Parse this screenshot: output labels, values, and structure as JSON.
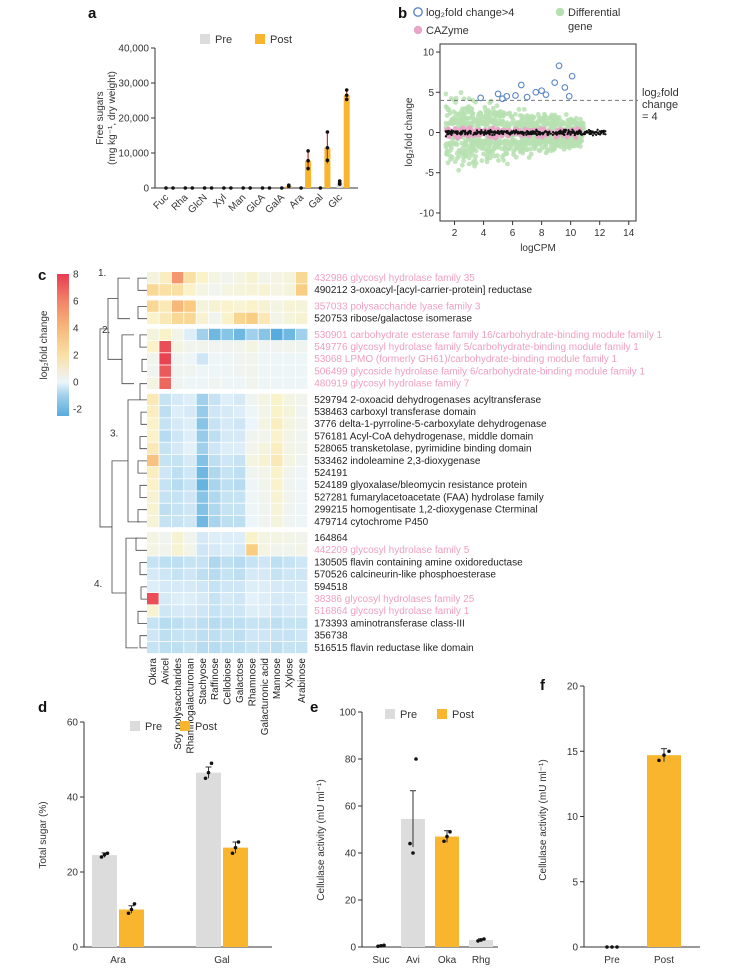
{
  "colors": {
    "pre": "#dcdcdc",
    "post": "#f9b52e",
    "blue_circle": "#5b86c4",
    "green_dot": "#b7e0b2",
    "pink_dot": "#e9a6c9",
    "cazyme_text": "#ef9fbf",
    "normal_text": "#222222",
    "axis": "#333333"
  },
  "chart_data": [
    {
      "panel": "a",
      "type": "bar",
      "title": "",
      "ylabel": "Free sugars (mg kg⁻¹, dry weight)",
      "ylim": [
        0,
        40000
      ],
      "yticks": [
        "0",
        "10,000",
        "20,000",
        "30,000",
        "40,000"
      ],
      "categories": [
        "Fuc",
        "Rha",
        "GlcN",
        "Xyl",
        "Man",
        "GlcA",
        "GalA",
        "Ara",
        "Gal",
        "Glc"
      ],
      "series": [
        {
          "name": "Pre",
          "values": [
            0,
            0,
            0,
            0,
            0,
            0,
            0,
            0,
            0,
            1500
          ],
          "errors": [
            0,
            0,
            0,
            0,
            0,
            0,
            0,
            0,
            0,
            500
          ]
        },
        {
          "name": "Post",
          "values": [
            0,
            0,
            0,
            0,
            0,
            0,
            600,
            7800,
            11500,
            26500
          ],
          "errors": [
            0,
            0,
            0,
            0,
            0,
            0,
            200,
            2800,
            4500,
            1500
          ]
        }
      ],
      "legend": [
        "Pre",
        "Post"
      ]
    },
    {
      "panel": "b",
      "type": "scatter",
      "xlabel": "logCPM",
      "ylabel": "log₂fold change",
      "xlim": [
        1,
        14.5
      ],
      "ylim": [
        -11,
        11
      ],
      "xticks": [
        "2",
        "4",
        "6",
        "8",
        "10",
        "12",
        "14"
      ],
      "yticks": [
        "-10",
        "-5",
        "0",
        "5",
        "10"
      ],
      "threshold_y": 4,
      "threshold_label": [
        "log₂fold",
        "change",
        "= 4"
      ],
      "legend": [
        "log₂fold change>4",
        "Differential",
        "gene",
        "CAZyme"
      ],
      "highlighted_points": [
        {
          "x": 3.8,
          "y": 4.3
        },
        {
          "x": 5.0,
          "y": 4.8
        },
        {
          "x": 5.6,
          "y": 4.5
        },
        {
          "x": 6.2,
          "y": 4.6
        },
        {
          "x": 7.0,
          "y": 4.4
        },
        {
          "x": 7.6,
          "y": 5.0
        },
        {
          "x": 8.0,
          "y": 5.2
        },
        {
          "x": 8.3,
          "y": 4.7
        },
        {
          "x": 8.9,
          "y": 6.2
        },
        {
          "x": 9.2,
          "y": 8.3
        },
        {
          "x": 9.6,
          "y": 5.6
        },
        {
          "x": 10.1,
          "y": 7.0
        },
        {
          "x": 6.6,
          "y": 5.9
        },
        {
          "x": 5.3,
          "y": 4.2
        },
        {
          "x": 9.9,
          "y": 4.5
        }
      ]
    },
    {
      "panel": "c",
      "type": "heatmap",
      "colorbar_label": "log₂fold change",
      "colorbar_ticks": [
        "8",
        "6",
        "4",
        "2",
        "0",
        "-2"
      ],
      "clusters": [
        "1.",
        "2.",
        "3.",
        "4."
      ],
      "columns": [
        "Okara",
        "Avicel",
        "Soy polysaccharides",
        "Rhamnogalacturonan",
        "Stachyose",
        "Raffinose",
        "Cellobiose",
        "Galactose",
        "Rhamnose",
        "Galacturonic acid",
        "Mannose",
        "Xylose",
        "Arabinose"
      ],
      "rows": [
        {
          "label": "432986 glycosyl hydrolase family 35",
          "cazyme": true,
          "values": [
            0.6,
            1.2,
            5.5,
            2.0,
            1.0,
            0.5,
            0.3,
            0.5,
            0.8,
            0.4,
            0.5,
            0.6,
            2.5
          ]
        },
        {
          "label": "490212 3-oxoacyl-[acyl-carrier-protein] reductase",
          "cazyme": false,
          "values": [
            2.5,
            2.0,
            2.0,
            1.0,
            0.5,
            0.3,
            0.5,
            0.6,
            0.7,
            0.8,
            0.5,
            0.6,
            3.0
          ]
        },
        {
          "label": "357033 polysaccharide lyase family 3",
          "cazyme": true,
          "values": [
            2.5,
            1.5,
            4.0,
            3.2,
            0.6,
            0.8,
            0.9,
            0.7,
            1.0,
            0.8,
            0.5,
            0.7,
            0.6
          ]
        },
        {
          "label": "520753 ribose/galactose isomerase",
          "cazyme": false,
          "values": [
            1.0,
            1.5,
            2.5,
            2.5,
            0.8,
            0.3,
            1.0,
            2.6,
            3.0,
            1.5,
            0.4,
            0.6,
            0.8
          ]
        },
        {
          "label": "530901 carbohydrate esterase family 16/carbohydrate-binding module family 1",
          "cazyme": true,
          "values": [
            0.6,
            1.0,
            0.4,
            -0.2,
            -1.0,
            -2.0,
            -1.5,
            -2.0,
            -1.0,
            -1.5,
            -2.5,
            -2.0,
            -1.0
          ]
        },
        {
          "label": "549776 glycosyl hydrolase family 5/carbohydrate-binding module family 1",
          "cazyme": true,
          "values": [
            1.0,
            7.5,
            0.5,
            0.3,
            0.3,
            0.2,
            0.2,
            0.3,
            0.5,
            0.2,
            0.2,
            0.3,
            0.2
          ]
        },
        {
          "label": "53068 LPMO (formerly GH61)/carbohydrate-binding module family 1",
          "cazyme": true,
          "values": [
            0.3,
            7.8,
            0.2,
            0.1,
            -0.4,
            0.1,
            0.1,
            0.2,
            0.3,
            0.1,
            0.1,
            0.1,
            0.1
          ]
        },
        {
          "label": "506499 glycoside hydrolase family 6/carbohydrate-binding module family 1",
          "cazyme": true,
          "values": [
            0.2,
            7.2,
            0.2,
            0.2,
            0.1,
            0.1,
            0.1,
            0.2,
            0.3,
            0.1,
            0.1,
            0.1,
            0.1
          ]
        },
        {
          "label": "480919 glycosyl hydrolase family 7",
          "cazyme": true,
          "values": [
            0.5,
            6.8,
            0.2,
            0.1,
            0.1,
            0.2,
            0.1,
            0.1,
            0.3,
            0.1,
            0.1,
            0.1,
            0.1
          ]
        },
        {
          "label": "529794 2-oxoacid dehydrogenases acyltransferase",
          "cazyme": false,
          "values": [
            1.5,
            -0.5,
            -0.3,
            -0.2,
            -1.0,
            -0.5,
            -0.2,
            -0.3,
            0.2,
            0.5,
            1.0,
            0.5,
            0.3
          ]
        },
        {
          "label": "538463 carboxyl transferase domain",
          "cazyme": false,
          "values": [
            1.2,
            -0.6,
            -0.2,
            -0.3,
            -1.2,
            -0.4,
            -0.3,
            -0.2,
            0.1,
            0.4,
            1.0,
            0.6,
            0.2
          ]
        },
        {
          "label": "3776 delta-1-pyrroline-5-carboxylate dehydrogenase",
          "cazyme": false,
          "values": [
            1.0,
            -0.5,
            -0.3,
            -0.2,
            -1.5,
            -0.5,
            -0.3,
            -0.4,
            0.0,
            0.5,
            1.2,
            0.5,
            0.3
          ]
        },
        {
          "label": "576181 Acyl-CoA dehydrogenase, middle domain",
          "cazyme": false,
          "values": [
            1.0,
            -0.7,
            -0.4,
            -0.2,
            -1.2,
            -0.6,
            -0.3,
            -0.3,
            0.2,
            0.3,
            0.9,
            0.4,
            0.2
          ]
        },
        {
          "label": "528065 transketolase, pyrimidine binding domain",
          "cazyme": false,
          "values": [
            1.5,
            -0.5,
            -0.3,
            -0.1,
            -1.0,
            -0.4,
            -0.2,
            -0.2,
            0.3,
            0.6,
            1.2,
            0.4,
            0.3
          ]
        },
        {
          "label": "533462 indoleamine 2,3-dioxygenase",
          "cazyme": false,
          "values": [
            3.5,
            -0.5,
            -0.5,
            -0.3,
            -1.6,
            -0.6,
            -0.4,
            -0.5,
            0.5,
            0.8,
            1.5,
            0.5,
            0.2
          ]
        },
        {
          "label": "524191",
          "cazyme": false,
          "values": [
            1.2,
            -0.4,
            -0.6,
            -0.4,
            -2.0,
            -0.8,
            -0.5,
            -0.6,
            0.2,
            0.4,
            1.0,
            0.3,
            0.1
          ]
        },
        {
          "label": "524189 glyoxalase/bleomycin resistance protein",
          "cazyme": false,
          "values": [
            1.0,
            -0.5,
            -0.7,
            -0.5,
            -2.2,
            -0.9,
            -0.6,
            -0.7,
            0.1,
            0.3,
            0.9,
            0.2,
            0.1
          ]
        },
        {
          "label": "527281 fumarylacetoacetate (FAA) hydrolase family",
          "cazyme": false,
          "values": [
            0.8,
            -0.5,
            -0.5,
            -0.4,
            -1.5,
            -0.8,
            -0.5,
            -0.5,
            0.1,
            0.3,
            0.8,
            0.3,
            0.1
          ]
        },
        {
          "label": "299215 homogentisate 1,2-dioxygenase Cterminal",
          "cazyme": false,
          "values": [
            0.8,
            -0.6,
            -0.5,
            -0.4,
            -1.6,
            -0.8,
            -0.5,
            -0.5,
            0.1,
            0.2,
            0.7,
            0.2,
            0.1
          ]
        },
        {
          "label": "479714 cytochrome P450",
          "cazyme": false,
          "values": [
            0.7,
            -0.5,
            -0.5,
            -0.4,
            -2.0,
            -0.9,
            -0.6,
            -0.6,
            0.0,
            0.2,
            0.6,
            0.2,
            0.1
          ]
        },
        {
          "label": "164864",
          "cazyme": false,
          "values": [
            0.5,
            0.2,
            0.8,
            0.3,
            -0.3,
            -0.2,
            -0.2,
            -0.2,
            1.0,
            0.5,
            0.5,
            0.4,
            0.3
          ]
        },
        {
          "label": "442209 glycosyl hydrolase family 5",
          "cazyme": true,
          "values": [
            0.5,
            0.3,
            0.8,
            0.4,
            -0.4,
            -0.3,
            -0.2,
            -0.3,
            3.0,
            0.5,
            0.3,
            0.3,
            0.4
          ]
        },
        {
          "label": "130505 flavin containing amine oxidoreductase",
          "cazyme": false,
          "values": [
            -0.5,
            -0.6,
            -0.6,
            -0.5,
            -0.5,
            -0.8,
            -0.6,
            -0.7,
            -0.5,
            -0.4,
            -0.6,
            -0.5,
            -0.4
          ]
        },
        {
          "label": "570526 calcineurin-like phosphoesterase",
          "cazyme": false,
          "values": [
            -0.3,
            -0.4,
            -0.5,
            -0.4,
            -0.6,
            -0.7,
            -0.5,
            -0.6,
            -0.3,
            -0.3,
            -0.5,
            -0.4,
            -0.4
          ]
        },
        {
          "label": "594518",
          "cazyme": false,
          "values": [
            -0.2,
            -0.3,
            -0.3,
            -0.3,
            -0.4,
            -0.5,
            -0.4,
            -0.4,
            -0.2,
            -0.2,
            -0.3,
            -0.3,
            -0.3
          ]
        },
        {
          "label": "38386 glycosyl hydrolases family 25",
          "cazyme": true,
          "values": [
            7.5,
            -0.3,
            -0.2,
            -0.2,
            -0.3,
            -0.5,
            -0.3,
            -0.4,
            -0.1,
            -0.2,
            -0.3,
            -0.3,
            -0.2
          ]
        },
        {
          "label": "516864 glycosyl hydrolase family 1",
          "cazyme": true,
          "values": [
            0.8,
            -0.4,
            -0.3,
            -0.3,
            -0.4,
            -0.5,
            -0.4,
            -0.4,
            -0.2,
            -0.2,
            -0.4,
            -0.3,
            -0.3
          ]
        },
        {
          "label": "173393 aminotransferase class-III",
          "cazyme": false,
          "values": [
            -0.5,
            -0.7,
            -0.6,
            -0.5,
            -0.6,
            -0.7,
            -0.6,
            -0.6,
            -0.5,
            -0.5,
            -0.6,
            -0.5,
            -0.5
          ]
        },
        {
          "label": "356738",
          "cazyme": false,
          "values": [
            -0.4,
            -0.6,
            -0.5,
            -0.5,
            -0.6,
            -0.6,
            -0.5,
            -0.6,
            -0.4,
            -0.4,
            -0.5,
            -0.5,
            -0.4
          ]
        },
        {
          "label": "516515 flavin reductase like domain",
          "cazyme": false,
          "values": [
            -0.5,
            -0.6,
            -0.6,
            -0.5,
            -0.7,
            -0.7,
            -0.6,
            -0.6,
            -0.5,
            -0.5,
            -0.6,
            -0.5,
            -0.5
          ]
        }
      ]
    },
    {
      "panel": "d",
      "type": "bar",
      "ylabel": "Total sugar (%)",
      "ylim": [
        0,
        60
      ],
      "yticks": [
        "0",
        "20",
        "40",
        "60"
      ],
      "categories": [
        "Ara",
        "Gal"
      ],
      "series": [
        {
          "name": "Pre",
          "values": [
            24.5,
            46.5
          ],
          "errors": [
            0.6,
            1.5
          ],
          "points": [
            [
              24,
              24.6,
              25
            ],
            [
              45,
              46.5,
              49
            ]
          ]
        },
        {
          "name": "Post",
          "values": [
            10,
            26.5
          ],
          "errors": [
            1.0,
            1.5
          ],
          "points": [
            [
              9,
              10,
              11.5
            ],
            [
              25,
              26.5,
              28
            ]
          ]
        }
      ],
      "legend": [
        "Pre",
        "Post"
      ]
    },
    {
      "panel": "e",
      "type": "bar",
      "ylabel": "Cellulase activity (mU ml⁻¹)",
      "ylim": [
        0,
        100
      ],
      "yticks": [
        "0",
        "20",
        "40",
        "60",
        "80",
        "100"
      ],
      "categories": [
        "Suc",
        "Avi",
        "Oka",
        "Rhg"
      ],
      "values": [
        0.5,
        54.5,
        47,
        3
      ],
      "errors": [
        0.3,
        12,
        2.5,
        0.5
      ],
      "points": [
        [
          0.3,
          0.5,
          0.7
        ],
        [
          44,
          40,
          80
        ],
        [
          45,
          47,
          49
        ],
        [
          2.6,
          3,
          3.4
        ]
      ],
      "bar_colors": [
        "pre",
        "pre",
        "post",
        "pre"
      ],
      "legend": [
        "Pre",
        "Post"
      ]
    },
    {
      "panel": "f",
      "type": "bar",
      "ylabel": "Cellulase activity (mU ml⁻¹)",
      "ylim": [
        0,
        20
      ],
      "yticks": [
        "0",
        "5",
        "10",
        "15",
        "20"
      ],
      "categories": [
        "Pre",
        "Post"
      ],
      "values": [
        0,
        14.7
      ],
      "errors": [
        0,
        0.5
      ],
      "points": [
        [
          0,
          0,
          0
        ],
        [
          14.3,
          14.7,
          15.0
        ]
      ],
      "bar_colors": [
        "pre",
        "post"
      ]
    }
  ]
}
